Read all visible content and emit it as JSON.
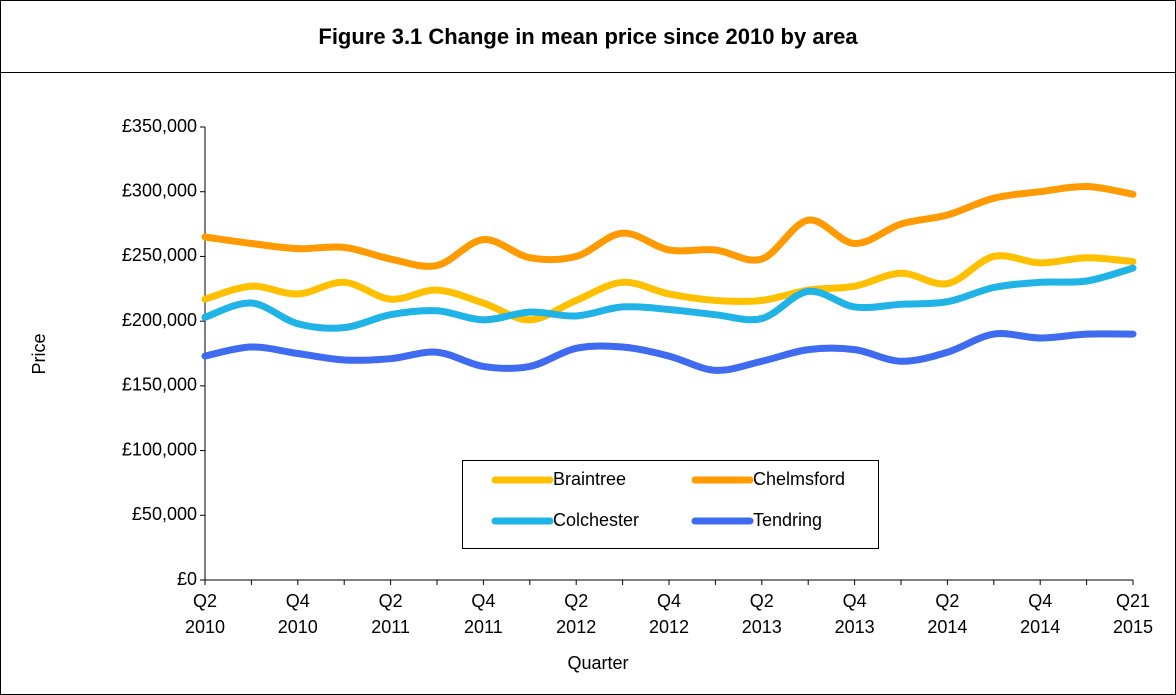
{
  "chart_data": {
    "type": "line",
    "title": "Figure 3.1 Change in mean price since 2010 by area",
    "xlabel": "Quarter",
    "ylabel": "Price",
    "categories": [
      "Q2 2010",
      null,
      "Q4 2010",
      null,
      "Q2 2011",
      null,
      "Q4 2011",
      null,
      "Q2 2012",
      null,
      "Q4 2012",
      null,
      "Q2 2013",
      null,
      "Q4 2013",
      null,
      "Q2 2014",
      null,
      "Q4 2014",
      null,
      "Q21 2015"
    ],
    "ylim": [
      0,
      350000
    ],
    "yticks": [
      {
        "value": 0,
        "label": "£0"
      },
      {
        "value": 50000,
        "label": "£50,000"
      },
      {
        "value": 100000,
        "label": "£100,000"
      },
      {
        "value": 150000,
        "label": "£150,000"
      },
      {
        "value": 200000,
        "label": "£200,000"
      },
      {
        "value": 250000,
        "label": "£250,000"
      },
      {
        "value": 300000,
        "label": "£300,000"
      },
      {
        "value": 350000,
        "label": "£350,000"
      }
    ],
    "grid": false,
    "legend": "bottom-center",
    "series": [
      {
        "name": "Braintree",
        "color": "#FFC000",
        "values": [
          217000,
          227000,
          221000,
          230000,
          217000,
          224000,
          214000,
          201000,
          216000,
          230000,
          221000,
          216000,
          216000,
          224000,
          227000,
          237000,
          229000,
          250000,
          245000,
          249000,
          246000
        ]
      },
      {
        "name": "Chelmsford",
        "color": "#FF9A00",
        "values": [
          265000,
          260000,
          256000,
          257000,
          248000,
          243000,
          263000,
          249000,
          250000,
          268000,
          255000,
          255000,
          248000,
          278000,
          260000,
          275000,
          282000,
          295000,
          300000,
          304000,
          298000
        ]
      },
      {
        "name": "Colchester",
        "color": "#1FB3E6",
        "values": [
          203000,
          214000,
          198000,
          195000,
          205000,
          208000,
          201000,
          207000,
          204000,
          211000,
          209000,
          205000,
          202000,
          223000,
          211000,
          213000,
          215000,
          226000,
          230000,
          231000,
          241000
        ]
      },
      {
        "name": "Tendring",
        "color": "#3E6BF0",
        "values": [
          173000,
          180000,
          175000,
          170000,
          171000,
          176000,
          165000,
          165000,
          179000,
          180000,
          173000,
          162000,
          169000,
          178000,
          178000,
          169000,
          176000,
          190000,
          187000,
          190000,
          190000
        ]
      }
    ]
  }
}
